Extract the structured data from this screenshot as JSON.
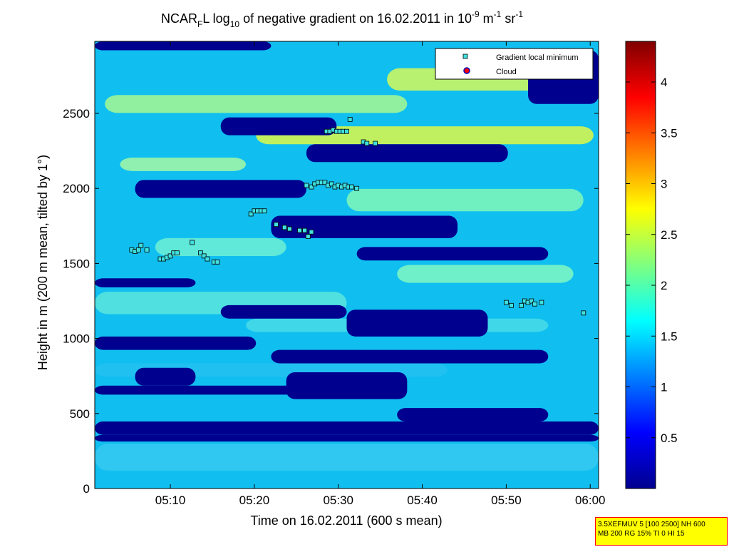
{
  "chart_data": {
    "type": "heatmap",
    "title": {
      "prefix": "NCAR",
      "prefix_sub": "F",
      "part1": "L log",
      "part1_sub": "10",
      "part2": " of negative gradient on 16.02.2011 in 10",
      "part2_sup": "-9",
      "part3": " m",
      "part3_sup": "-1",
      "part4": " sr",
      "part4_sup": "-1"
    },
    "xlabel": "Time on 16.02.2011 (600 s mean)",
    "ylabel": "Height in m (200 m mean, tilted by 1°)",
    "x_ticks": [
      "05:10",
      "05:20",
      "05:30",
      "05:40",
      "05:50",
      "06:00"
    ],
    "x_tick_minutes": [
      10,
      20,
      30,
      40,
      50,
      60
    ],
    "xlim_minutes": [
      1.0,
      61.0
    ],
    "y_ticks": [
      0,
      500,
      1000,
      1500,
      2000,
      2500
    ],
    "ylim": [
      0,
      2980
    ],
    "colorbar": {
      "ticks": [
        0.5,
        1,
        1.5,
        2,
        2.5,
        3,
        3.5,
        4
      ],
      "range": [
        0.0,
        4.4
      ],
      "colormap": "jet"
    },
    "legend": {
      "placement": "top-right",
      "entries": [
        "Gradient local minimum",
        "Cloud"
      ]
    },
    "series": [
      {
        "name": "Gradient local minimum",
        "marker": "square",
        "color": "#40e0e0",
        "points": [
          [
            5.4,
            1590
          ],
          [
            5.8,
            1580
          ],
          [
            6.2,
            1590
          ],
          [
            6.5,
            1620
          ],
          [
            7.2,
            1590
          ],
          [
            8.8,
            1530
          ],
          [
            9.2,
            1530
          ],
          [
            9.6,
            1540
          ],
          [
            10.0,
            1550
          ],
          [
            10.4,
            1570
          ],
          [
            10.8,
            1570
          ],
          [
            12.6,
            1640
          ],
          [
            13.6,
            1570
          ],
          [
            14.0,
            1550
          ],
          [
            14.4,
            1530
          ],
          [
            15.2,
            1510
          ],
          [
            15.6,
            1510
          ],
          [
            19.6,
            1830
          ],
          [
            20.0,
            1850
          ],
          [
            20.4,
            1850
          ],
          [
            20.8,
            1850
          ],
          [
            21.2,
            1850
          ],
          [
            22.6,
            1760
          ],
          [
            23.6,
            1740
          ],
          [
            24.2,
            1730
          ],
          [
            25.4,
            1720
          ],
          [
            26.0,
            1720
          ],
          [
            26.4,
            1680
          ],
          [
            26.8,
            1710
          ],
          [
            26.2,
            2020
          ],
          [
            26.8,
            2010
          ],
          [
            27.2,
            2030
          ],
          [
            27.6,
            2040
          ],
          [
            28.0,
            2040
          ],
          [
            28.4,
            2040
          ],
          [
            28.8,
            2020
          ],
          [
            29.2,
            2030
          ],
          [
            29.6,
            2010
          ],
          [
            30.0,
            2020
          ],
          [
            30.4,
            2010
          ],
          [
            30.8,
            2020
          ],
          [
            31.2,
            2010
          ],
          [
            31.6,
            2010
          ],
          [
            32.2,
            2000
          ],
          [
            28.6,
            2380
          ],
          [
            29.0,
            2380
          ],
          [
            29.4,
            2390
          ],
          [
            29.8,
            2380
          ],
          [
            30.2,
            2380
          ],
          [
            30.6,
            2380
          ],
          [
            31.0,
            2380
          ],
          [
            31.4,
            2460
          ],
          [
            33.0,
            2310
          ],
          [
            33.4,
            2300
          ],
          [
            34.4,
            2300
          ],
          [
            50.0,
            1240
          ],
          [
            50.6,
            1220
          ],
          [
            51.8,
            1220
          ],
          [
            52.2,
            1250
          ],
          [
            52.6,
            1240
          ],
          [
            53.0,
            1250
          ],
          [
            53.4,
            1230
          ],
          [
            54.2,
            1240
          ],
          [
            59.2,
            1170
          ]
        ]
      },
      {
        "name": "Cloud",
        "marker": "circle",
        "color": "#ff0000",
        "points": []
      }
    ]
  },
  "infobox": {
    "line1": "3.5XEFMUV 5 [100 2500] NH 600",
    "line2": "MB 200 RG 15% TI 0 HI 15"
  }
}
